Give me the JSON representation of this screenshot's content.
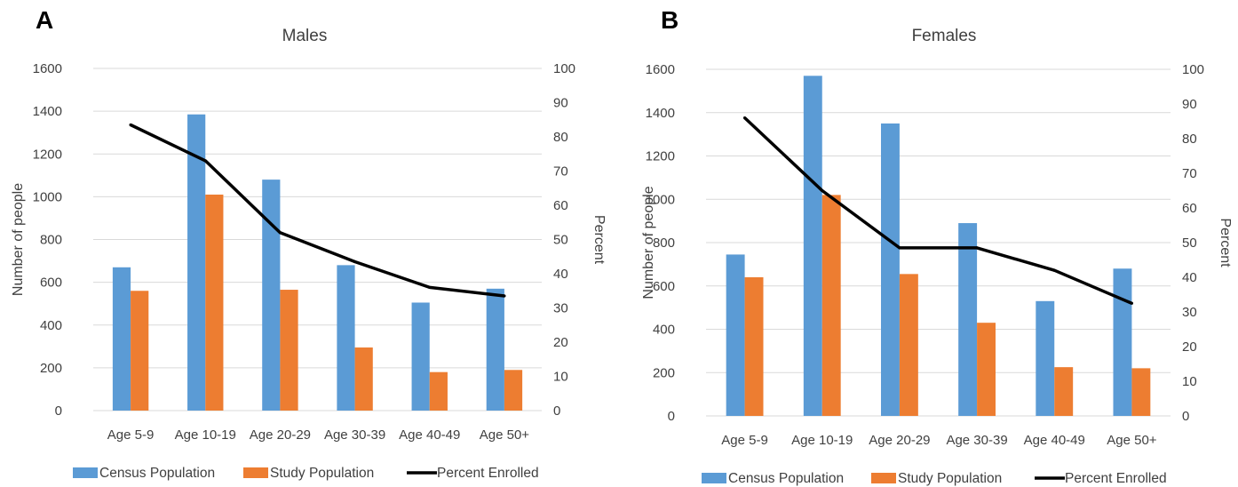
{
  "chart_data": [
    {
      "panel": "A",
      "type": "bar",
      "title": "Males",
      "xlabel": "",
      "ylabel": "Number of people",
      "y2label": "Percent",
      "categories": [
        "Age 5-9",
        "Age 10-19",
        "Age 20-29",
        "Age 30-39",
        "Age 40-49",
        "Age 50+"
      ],
      "ylim": [
        0,
        1600
      ],
      "yticks": [
        0,
        200,
        400,
        600,
        800,
        1000,
        1200,
        1400,
        1600
      ],
      "y2lim": [
        0,
        100
      ],
      "y2ticks": [
        0,
        10,
        20,
        30,
        40,
        50,
        60,
        70,
        80,
        90,
        100
      ],
      "series": [
        {
          "name": "Census Population",
          "type": "bar",
          "axis": "left",
          "color": "#5b9bd5",
          "values": [
            670,
            1385,
            1080,
            680,
            505,
            570
          ]
        },
        {
          "name": "Study Population",
          "type": "bar",
          "axis": "left",
          "color": "#ed7d31",
          "values": [
            560,
            1010,
            565,
            295,
            180,
            190
          ]
        },
        {
          "name": "Percent Enrolled",
          "type": "line",
          "axis": "right",
          "color": "#000000",
          "values": [
            83.5,
            73,
            52,
            43.5,
            36,
            33.5
          ]
        }
      ],
      "grid": true,
      "legend": "bottom"
    },
    {
      "panel": "B",
      "type": "bar",
      "title": "Females",
      "xlabel": "",
      "ylabel": "Number of people",
      "y2label": "Percent",
      "categories": [
        "Age 5-9",
        "Age 10-19",
        "Age 20-29",
        "Age 30-39",
        "Age 40-49",
        "Age 50+"
      ],
      "ylim": [
        0,
        1600
      ],
      "yticks": [
        0,
        200,
        400,
        600,
        800,
        1000,
        1200,
        1400,
        1600
      ],
      "y2lim": [
        0,
        100
      ],
      "y2ticks": [
        0,
        10,
        20,
        30,
        40,
        50,
        60,
        70,
        80,
        90,
        100
      ],
      "series": [
        {
          "name": "Census Population",
          "type": "bar",
          "axis": "left",
          "color": "#5b9bd5",
          "values": [
            745,
            1570,
            1350,
            890,
            530,
            680
          ]
        },
        {
          "name": "Study Population",
          "type": "bar",
          "axis": "left",
          "color": "#ed7d31",
          "values": [
            640,
            1020,
            655,
            430,
            225,
            220
          ]
        },
        {
          "name": "Percent Enrolled",
          "type": "line",
          "axis": "right",
          "color": "#000000",
          "values": [
            86,
            65,
            48.5,
            48.5,
            42,
            32.5
          ]
        }
      ],
      "grid": true,
      "legend": "bottom"
    }
  ]
}
